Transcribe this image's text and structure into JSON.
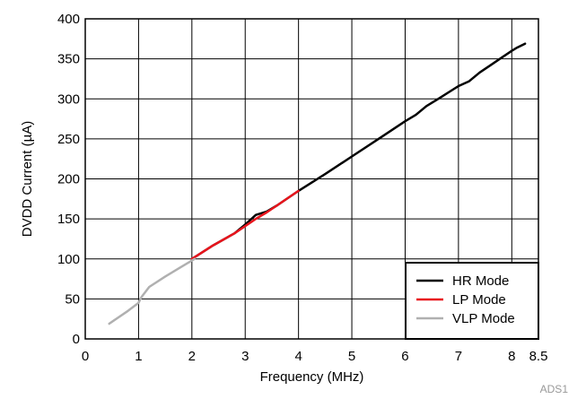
{
  "chart_data": {
    "type": "line",
    "xlabel": "Frequency (MHz)",
    "ylabel": "DVDD Current (µA)",
    "xlim": [
      0,
      8.5
    ],
    "ylim": [
      0,
      400
    ],
    "x_ticks": [
      0,
      1,
      2,
      3,
      4,
      5,
      6,
      7,
      8,
      8.5
    ],
    "x_tick_labels": [
      "0",
      "1",
      "2",
      "3",
      "4",
      "5",
      "6",
      "7",
      "8",
      "8.5"
    ],
    "y_ticks": [
      0,
      50,
      100,
      150,
      200,
      250,
      300,
      350,
      400
    ],
    "y_tick_labels": [
      "0",
      "50",
      "100",
      "150",
      "200",
      "250",
      "300",
      "350",
      "400"
    ],
    "grid": true,
    "legend_position": "bottom-right",
    "footnote": "ADS1",
    "series": [
      {
        "name": "HR Mode",
        "color": "#000000",
        "x": [
          2.0,
          2.4,
          2.8,
          3.0,
          3.1,
          3.2,
          3.4,
          3.6,
          4.0,
          4.5,
          5.0,
          5.5,
          6.0,
          6.2,
          6.4,
          6.6,
          7.0,
          7.2,
          7.4,
          7.6,
          7.8,
          8.0,
          8.1,
          8.25
        ],
        "y": [
          100,
          117,
          132,
          143,
          149,
          155,
          159,
          167,
          185,
          206,
          228,
          250,
          272,
          280,
          291,
          299,
          316,
          322,
          333,
          342,
          351,
          360,
          364,
          369
        ]
      },
      {
        "name": "LP Mode",
        "color": "#e8141c",
        "x": [
          2.0,
          2.4,
          2.8,
          3.0,
          3.2,
          3.4,
          3.6,
          3.8,
          4.0
        ],
        "y": [
          100,
          117,
          132,
          141,
          150,
          158,
          167,
          176,
          185
        ]
      },
      {
        "name": "VLP Mode",
        "color": "#b0b0b0",
        "x": [
          0.45,
          0.8,
          1.0,
          1.05,
          1.2,
          1.5,
          1.8,
          2.05
        ],
        "y": [
          19,
          35,
          45,
          52,
          65,
          78,
          90,
          100
        ]
      }
    ]
  }
}
